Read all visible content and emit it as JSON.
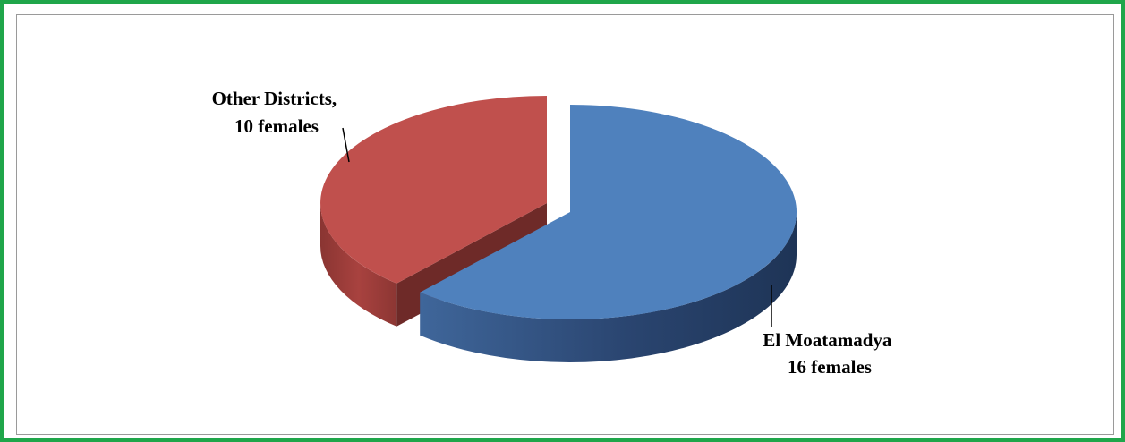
{
  "chart_data": {
    "type": "pie",
    "title": "",
    "slices": [
      {
        "label_lines": [
          "El Moatamadya",
          "16 females"
        ],
        "value": 16,
        "color": "#4f81bd"
      },
      {
        "label_lines": [
          "Other Districts,",
          "10 females"
        ],
        "value": 10,
        "color": "#c0504d"
      }
    ],
    "legend": "none",
    "style": "3d-exploded"
  },
  "colors": {
    "frame_border": "#1fa64a",
    "panel_border": "#9a9a9a"
  }
}
